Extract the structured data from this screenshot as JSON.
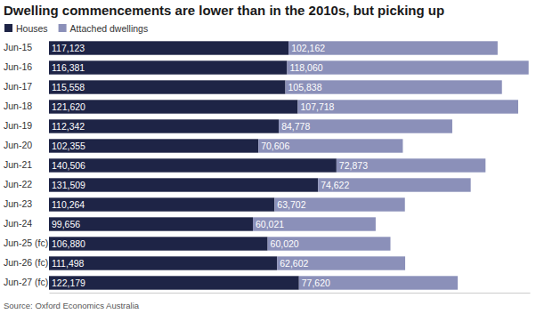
{
  "chart_data": {
    "type": "bar",
    "title": "Dwelling commencements are lower than in the 2010s, but picking up",
    "source": "Source: Oxford Economics Australia",
    "orientation": "horizontal",
    "stacked": true,
    "data_labels": true,
    "tick_labels": "y",
    "legend": "top-left",
    "grid": false,
    "categories": [
      "Jun-15",
      "Jun-16",
      "Jun-17",
      "Jun-18",
      "Jun-19",
      "Jun-20",
      "Jun-21",
      "Jun-22",
      "Jun-23",
      "Jun-24",
      "Jun-25 (fc)",
      "Jun-26 (fc)",
      "Jun-27 (fc)"
    ],
    "xlim": [
      0,
      235000
    ],
    "xticks": [],
    "series": [
      {
        "name": "Houses",
        "color": "#1e2446",
        "values": [
          117123,
          116381,
          115558,
          121620,
          112342,
          102355,
          140506,
          131509,
          110264,
          99656,
          106880,
          111498,
          122179
        ],
        "value_labels": [
          "117,123",
          "116,381",
          "115,558",
          "121,620",
          "112,342",
          "102,355",
          "140,506",
          "131,509",
          "110,264",
          "99,656",
          "106,880",
          "111,498",
          "122,179"
        ]
      },
      {
        "name": "Attached dwellings",
        "color": "#8b90b9",
        "values": [
          102162,
          118060,
          105838,
          107718,
          84778,
          70606,
          72873,
          74622,
          63702,
          60021,
          60020,
          62602,
          77620
        ],
        "value_labels": [
          "102,162",
          "118,060",
          "105,838",
          "107,718",
          "84,778",
          "70,606",
          "72,873",
          "74,622",
          "63,702",
          "60,021",
          "60,020",
          "62,602",
          "77,620"
        ]
      }
    ]
  }
}
